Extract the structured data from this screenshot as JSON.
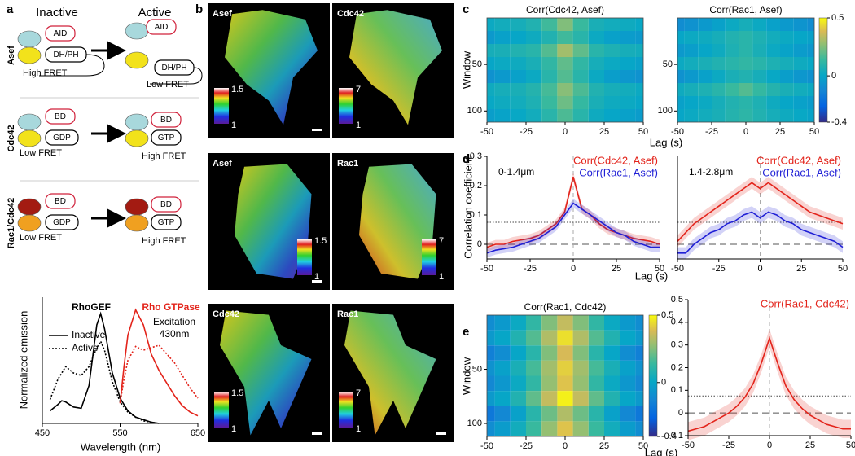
{
  "panel_a": {
    "label": "a",
    "headers": [
      "Inactive",
      "Active"
    ],
    "rows": [
      {
        "name": "Asef",
        "color": "#000000",
        "inactive": [
          "AID",
          "DH/PH"
        ],
        "active": [
          "AID",
          "DH/PH"
        ],
        "fret": [
          "High FRET",
          "Low FRET"
        ]
      },
      {
        "name": "Cdc42",
        "color": "#000000",
        "inactive": [
          "BD",
          "GDP"
        ],
        "active": [
          "BD",
          "GTP"
        ],
        "fret": [
          "Low FRET",
          "High FRET"
        ]
      },
      {
        "name": "Rac1/Cdc42",
        "color": "#e3241b",
        "inactive": [
          "BD",
          "GDP"
        ],
        "active": [
          "BD",
          "GTP"
        ],
        "fret": [
          "Low FRET",
          "High FRET"
        ]
      }
    ]
  },
  "panel_b": {
    "label": "b",
    "images": [
      {
        "label": "Asef",
        "colorbar": [
          1.5,
          1
        ]
      },
      {
        "label": "Cdc42",
        "colorbar": [
          7,
          1
        ]
      },
      {
        "label": "Asef",
        "colorbar": [
          1.5,
          1
        ]
      },
      {
        "label": "Rac1",
        "colorbar": [
          7,
          1
        ]
      },
      {
        "label": "Cdc42",
        "colorbar": [
          1.5,
          1
        ]
      },
      {
        "label": "Rac1",
        "colorbar": [
          7,
          1
        ]
      }
    ]
  },
  "panel_labels": [
    "c",
    "d",
    "e"
  ],
  "chart_data": [
    {
      "type": "line",
      "xlabel": "Wavelength (nm)",
      "ylabel": "Normalized emission",
      "xlim": [
        450,
        650
      ],
      "xticks": [
        450,
        550,
        650
      ],
      "ylim": [
        0,
        1
      ],
      "annotations": [
        {
          "text": "RhoGEF",
          "color": "#000000",
          "weight": "bold"
        },
        {
          "text": "Rho GTPase",
          "color": "#e3241b",
          "weight": "bold"
        },
        {
          "text": "Excitation",
          "color": "#000000"
        },
        {
          "text": "430nm",
          "color": "#000000"
        }
      ],
      "legend": [
        {
          "name": "Inactive",
          "linestyle": "solid"
        },
        {
          "name": "Active",
          "linestyle": "dotted"
        }
      ],
      "series": [
        {
          "color": "#000000",
          "linestyle": "solid",
          "x": [
            460,
            470,
            475,
            480,
            490,
            500,
            510,
            520,
            525,
            530,
            540,
            550,
            560,
            570,
            580,
            590,
            600
          ],
          "values": [
            0.1,
            0.15,
            0.18,
            0.17,
            0.13,
            0.12,
            0.3,
            0.78,
            0.87,
            0.75,
            0.4,
            0.2,
            0.1,
            0.05,
            0.03,
            0.01,
            0
          ]
        },
        {
          "color": "#000000",
          "linestyle": "dotted",
          "x": [
            460,
            470,
            480,
            490,
            500,
            510,
            520,
            525,
            530,
            540,
            550,
            560,
            570,
            580,
            590,
            600
          ],
          "values": [
            0.19,
            0.35,
            0.45,
            0.4,
            0.38,
            0.45,
            0.6,
            0.65,
            0.58,
            0.33,
            0.17,
            0.09,
            0.05,
            0.02,
            0.01,
            0
          ]
        },
        {
          "color": "#e3241b",
          "linestyle": "solid",
          "x": [
            550,
            555,
            560,
            570,
            580,
            590,
            600,
            610,
            620,
            630,
            640,
            650
          ],
          "values": [
            0.16,
            0.45,
            0.7,
            0.9,
            0.78,
            0.55,
            0.42,
            0.32,
            0.22,
            0.14,
            0.09,
            0.06
          ]
        },
        {
          "color": "#e3241b",
          "linestyle": "dotted",
          "x": [
            550,
            555,
            560,
            570,
            580,
            590,
            600,
            610,
            620,
            630,
            640,
            650
          ],
          "values": [
            0.16,
            0.35,
            0.5,
            0.61,
            0.58,
            0.6,
            0.62,
            0.55,
            0.48,
            0.38,
            0.28,
            0.2
          ]
        }
      ]
    },
    {
      "type": "heatmap",
      "title": "Corr(Cdc42, Asef)",
      "ylabel": "Window",
      "colormap": "parula",
      "yreverse": true,
      "x": [
        -50,
        -40,
        -30,
        -20,
        -10,
        0,
        10,
        20,
        30,
        40,
        50
      ],
      "y": [
        7,
        21,
        35,
        49,
        63,
        77,
        91,
        105
      ],
      "xlim": [
        -50,
        50
      ],
      "xticks": [
        -50,
        -25,
        0,
        25,
        50
      ],
      "ylim": [
        0,
        112
      ],
      "yticks": [
        50,
        100
      ],
      "zlim": [
        -0.4,
        0.5
      ],
      "values": [
        [
          0.02,
          0.04,
          0.05,
          0.08,
          0.15,
          0.25,
          0.14,
          0.06,
          0.04,
          0.03,
          0.01
        ],
        [
          -0.05,
          -0.02,
          0.0,
          0.03,
          0.08,
          0.15,
          0.1,
          0.02,
          -0.02,
          -0.04,
          -0.05
        ],
        [
          0.05,
          0.06,
          0.08,
          0.1,
          0.18,
          0.3,
          0.2,
          0.1,
          0.07,
          0.05,
          0.04
        ],
        [
          0.0,
          0.02,
          0.03,
          0.06,
          0.12,
          0.2,
          0.12,
          0.05,
          0.02,
          0.0,
          -0.02
        ],
        [
          -0.08,
          -0.05,
          -0.02,
          0.02,
          0.1,
          0.18,
          0.1,
          0.02,
          -0.03,
          -0.06,
          -0.08
        ],
        [
          0.03,
          0.05,
          0.06,
          0.09,
          0.16,
          0.26,
          0.17,
          0.08,
          0.05,
          0.04,
          0.02
        ],
        [
          0.01,
          0.03,
          0.04,
          0.07,
          0.14,
          0.22,
          0.13,
          0.06,
          0.03,
          0.02,
          0.0
        ],
        [
          -0.03,
          -0.01,
          0.01,
          0.04,
          0.1,
          0.17,
          0.1,
          0.03,
          0.0,
          -0.02,
          -0.04
        ]
      ]
    },
    {
      "type": "heatmap",
      "title": "Corr(Rac1, Asef)",
      "xlabel": "Lag (s)",
      "colormap": "parula",
      "yreverse": true,
      "x": [
        -50,
        -40,
        -30,
        -20,
        -10,
        0,
        10,
        20,
        30,
        40,
        50
      ],
      "y": [
        7,
        21,
        35,
        49,
        63,
        77,
        91,
        105
      ],
      "xlim": [
        -50,
        50
      ],
      "xticks": [
        -50,
        -25,
        0,
        25,
        50
      ],
      "ylim": [
        0,
        112
      ],
      "yticks": [
        50,
        100
      ],
      "zlim": [
        -0.4,
        0.5
      ],
      "zticks": [
        0.5,
        0,
        -0.4
      ],
      "values": [
        [
          -0.1,
          -0.08,
          -0.05,
          -0.02,
          0.02,
          0.05,
          0.02,
          -0.02,
          -0.05,
          -0.07,
          -0.1
        ],
        [
          0.0,
          0.02,
          0.03,
          0.05,
          0.08,
          0.1,
          0.07,
          0.04,
          0.02,
          0.0,
          -0.02
        ],
        [
          -0.05,
          -0.03,
          0.0,
          0.03,
          0.07,
          0.1,
          0.06,
          0.02,
          -0.01,
          -0.04,
          -0.06
        ],
        [
          0.02,
          0.04,
          0.06,
          0.08,
          0.1,
          0.12,
          0.1,
          0.07,
          0.05,
          0.03,
          0.01
        ],
        [
          -0.08,
          -0.05,
          -0.02,
          0.02,
          0.06,
          0.08,
          0.05,
          0.01,
          -0.03,
          -0.06,
          -0.08
        ],
        [
          0.03,
          0.05,
          0.07,
          0.1,
          0.14,
          0.18,
          0.13,
          0.09,
          0.06,
          0.04,
          0.02
        ],
        [
          -0.02,
          0.0,
          0.02,
          0.05,
          0.08,
          0.1,
          0.07,
          0.03,
          0.0,
          -0.02,
          -0.04
        ],
        [
          0.0,
          0.02,
          0.04,
          0.06,
          0.09,
          0.11,
          0.08,
          0.05,
          0.03,
          0.01,
          -0.01
        ]
      ]
    },
    {
      "type": "line",
      "ylabel": "Correlation coefficient",
      "xlim": [
        -50,
        50
      ],
      "xticks": [
        -50,
        -25,
        0,
        25,
        50
      ],
      "ylim": [
        -0.05,
        0.3
      ],
      "yticks": [
        0,
        0.1,
        0.2,
        0.3
      ],
      "threshold": 0.075,
      "zero_lines": true,
      "legend_position": "upper right",
      "annotations": [
        {
          "text": "0-1.4μm",
          "color": "#000000"
        }
      ],
      "x": [
        -50,
        -45,
        -40,
        -35,
        -30,
        -25,
        -20,
        -15,
        -10,
        -5,
        0,
        5,
        10,
        15,
        20,
        25,
        30,
        35,
        40,
        45,
        50
      ],
      "series": [
        {
          "name": "Corr(Cdc42, Asef)",
          "color": "#e3241b",
          "error": 0.015,
          "values": [
            -0.01,
            0.0,
            0.0,
            0.01,
            0.015,
            0.02,
            0.03,
            0.05,
            0.07,
            0.11,
            0.23,
            0.12,
            0.1,
            0.07,
            0.05,
            0.04,
            0.03,
            0.02,
            0.015,
            0.01,
            0.0
          ]
        },
        {
          "name": "Corr(Rac1, Asef)",
          "color": "#1f1fd6",
          "error": 0.015,
          "values": [
            -0.03,
            -0.02,
            -0.015,
            -0.01,
            0.0,
            0.01,
            0.02,
            0.04,
            0.06,
            0.1,
            0.14,
            0.12,
            0.1,
            0.08,
            0.06,
            0.04,
            0.03,
            0.01,
            0.0,
            -0.01,
            -0.01
          ]
        }
      ]
    },
    {
      "type": "line",
      "xlabel": "Lag (s)",
      "xlim": [
        -50,
        50
      ],
      "xticks": [
        -50,
        -25,
        0,
        25,
        50
      ],
      "ylim": [
        -0.05,
        0.3
      ],
      "threshold": 0.075,
      "zero_lines": true,
      "legend_position": "upper right",
      "annotations": [
        {
          "text": "1.4-2.8μm",
          "color": "#000000"
        }
      ],
      "x": [
        -50,
        -45,
        -40,
        -35,
        -30,
        -25,
        -20,
        -15,
        -10,
        -5,
        0,
        5,
        10,
        15,
        20,
        25,
        30,
        35,
        40,
        45,
        50
      ],
      "series": [
        {
          "name": "Corr(Cdc42, Asef)",
          "color": "#e3241b",
          "error": 0.02,
          "values": [
            0.01,
            0.04,
            0.07,
            0.09,
            0.11,
            0.13,
            0.15,
            0.17,
            0.19,
            0.21,
            0.19,
            0.21,
            0.19,
            0.17,
            0.15,
            0.13,
            0.11,
            0.1,
            0.09,
            0.08,
            0.07
          ]
        },
        {
          "name": "Corr(Rac1, Asef)",
          "color": "#1f1fd6",
          "error": 0.02,
          "values": [
            -0.03,
            -0.03,
            0.0,
            0.02,
            0.04,
            0.05,
            0.07,
            0.08,
            0.1,
            0.11,
            0.09,
            0.11,
            0.1,
            0.08,
            0.07,
            0.05,
            0.04,
            0.03,
            0.02,
            0.01,
            -0.01
          ]
        }
      ]
    },
    {
      "type": "heatmap",
      "title": "Corr(Rac1, Cdc42)",
      "ylabel": "Window",
      "xlabel": "Lag (s)",
      "colormap": "parula",
      "yreverse": true,
      "x": [
        -50,
        -40,
        -30,
        -20,
        -10,
        0,
        10,
        20,
        30,
        40,
        50
      ],
      "y": [
        7,
        21,
        35,
        49,
        63,
        77,
        91,
        105
      ],
      "xlim": [
        -50,
        50
      ],
      "xticks": [
        -50,
        -25,
        0,
        25,
        50
      ],
      "ylim": [
        0,
        112
      ],
      "yticks": [
        50,
        100
      ],
      "zlim": [
        -0.4,
        0.5
      ],
      "zticks": [
        0.5,
        0,
        -0.4
      ],
      "values": [
        [
          -0.1,
          -0.05,
          0.02,
          0.12,
          0.25,
          0.35,
          0.25,
          0.12,
          0.02,
          -0.05,
          -0.1
        ],
        [
          -0.05,
          0.0,
          0.08,
          0.18,
          0.32,
          0.45,
          0.32,
          0.18,
          0.08,
          0.0,
          -0.05
        ],
        [
          -0.15,
          -0.1,
          0.0,
          0.1,
          0.25,
          0.38,
          0.25,
          0.1,
          0.0,
          -0.1,
          -0.15
        ],
        [
          -0.08,
          -0.02,
          0.06,
          0.16,
          0.3,
          0.42,
          0.3,
          0.16,
          0.06,
          -0.02,
          -0.08
        ],
        [
          -0.12,
          -0.06,
          0.02,
          0.12,
          0.28,
          0.4,
          0.28,
          0.12,
          0.02,
          -0.06,
          -0.12
        ],
        [
          -0.05,
          0.0,
          0.08,
          0.2,
          0.35,
          0.48,
          0.35,
          0.2,
          0.08,
          0.0,
          -0.05
        ],
        [
          -0.18,
          -0.12,
          -0.02,
          0.1,
          0.22,
          0.32,
          0.22,
          0.1,
          -0.02,
          -0.12,
          -0.18
        ],
        [
          -0.1,
          -0.04,
          0.04,
          0.14,
          0.28,
          0.4,
          0.28,
          0.14,
          0.04,
          -0.04,
          -0.1
        ]
      ]
    },
    {
      "type": "line",
      "xlim": [
        -50,
        50
      ],
      "xticks": [
        -50,
        -25,
        0,
        25,
        50
      ],
      "ylim": [
        -0.1,
        0.5
      ],
      "yticks": [
        -0.1,
        0,
        0.1,
        0.2,
        0.3,
        0.4,
        0.5
      ],
      "threshold": 0.075,
      "zero_lines": true,
      "legend_position": "upper right",
      "x": [
        -50,
        -45,
        -40,
        -35,
        -30,
        -25,
        -20,
        -15,
        -10,
        -5,
        0,
        5,
        10,
        15,
        20,
        25,
        30,
        35,
        40,
        45,
        50
      ],
      "series": [
        {
          "name": "Corr(Rac1, Cdc42)",
          "color": "#e3241b",
          "error": 0.04,
          "values": [
            -0.08,
            -0.07,
            -0.06,
            -0.04,
            -0.02,
            0.0,
            0.03,
            0.07,
            0.13,
            0.22,
            0.33,
            0.22,
            0.12,
            0.06,
            0.02,
            -0.01,
            -0.03,
            -0.05,
            -0.06,
            -0.07,
            -0.07
          ]
        }
      ]
    }
  ]
}
